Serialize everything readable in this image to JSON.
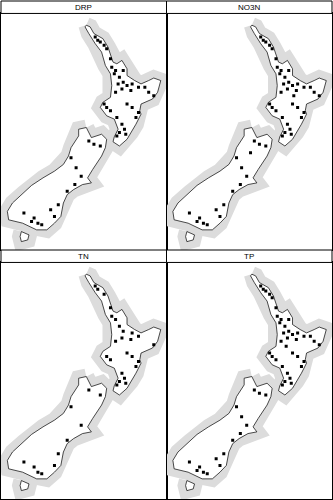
{
  "chart_data": [
    {
      "type": "scatter",
      "title": "DRP",
      "color": "#000000",
      "marker": "square",
      "tick_labels": false,
      "xlim": [
        166.0,
        179.0
      ],
      "ylim": [
        -47.8,
        -33.7
      ],
      "x": [
        173.4,
        173.8,
        174.1,
        173.6,
        174.3,
        174.6,
        174.7,
        175.0,
        174.9,
        175.6,
        175.3,
        175.6,
        175.2,
        175.5,
        175.9,
        175.0,
        176.3,
        176.8,
        177.3,
        176.2,
        178.0,
        177.6,
        176.8,
        176.6,
        176.3,
        174.3,
        174.1,
        174.6,
        175.5,
        175.7,
        175.8,
        175.3,
        175.1,
        175.9,
        175.1,
        172.9,
        173.3,
        173.8,
        171.5,
        171.9,
        172.3,
        171.8,
        171.2,
        170.5,
        169.9,
        170.2,
        168.6,
        168.9,
        168.4,
        169.2,
        167.8
      ],
      "y": [
        -35.1,
        -35.4,
        -35.6,
        -35.3,
        -35.8,
        -36.4,
        -36.9,
        -37.1,
        -37.3,
        -37.1,
        -37.5,
        -37.8,
        -37.9,
        -38.2,
        -38.0,
        -38.4,
        -37.9,
        -38.1,
        -38.1,
        -38.3,
        -38.6,
        -38.4,
        -39.6,
        -39.9,
        -39.3,
        -39.3,
        -39.1,
        -39.5,
        -40.3,
        -40.6,
        -40.9,
        -40.8,
        -39.9,
        -39.1,
        -41.0,
        -41.3,
        -41.5,
        -41.6,
        -42.3,
        -42.9,
        -43.4,
        -43.9,
        -44.3,
        -45.1,
        -45.4,
        -45.8,
        -45.9,
        -46.2,
        -46.1,
        -46.3,
        -45.6
      ]
    },
    {
      "type": "scatter",
      "title": "NO3N",
      "color": "#000000",
      "marker": "square",
      "tick_labels": false,
      "xlim": [
        166.0,
        179.0
      ],
      "ylim": [
        -47.8,
        -33.7
      ],
      "x": [
        173.4,
        173.8,
        174.1,
        173.6,
        174.3,
        174.6,
        174.7,
        175.0,
        174.9,
        175.6,
        175.3,
        175.6,
        175.2,
        175.5,
        175.9,
        175.0,
        176.3,
        176.8,
        177.3,
        176.2,
        178.0,
        177.6,
        176.8,
        176.6,
        176.3,
        174.3,
        174.1,
        174.6,
        175.5,
        175.7,
        175.8,
        175.3,
        175.1,
        175.9,
        175.1,
        176.0,
        172.9,
        173.3,
        173.8,
        172.6,
        171.5,
        171.9,
        172.3,
        171.8,
        171.2,
        170.5,
        169.9,
        170.2,
        168.6,
        168.9,
        168.4,
        169.2,
        167.8
      ],
      "y": [
        -35.1,
        -35.4,
        -35.6,
        -35.3,
        -35.8,
        -36.4,
        -36.9,
        -37.1,
        -37.3,
        -37.1,
        -37.5,
        -37.8,
        -37.9,
        -38.2,
        -38.0,
        -38.4,
        -37.9,
        -38.1,
        -38.1,
        -38.3,
        -38.6,
        -38.4,
        -39.6,
        -39.9,
        -39.3,
        -39.3,
        -39.1,
        -39.5,
        -40.3,
        -40.6,
        -40.9,
        -40.8,
        -39.9,
        -39.1,
        -41.0,
        -38.6,
        -41.3,
        -41.5,
        -41.6,
        -42.0,
        -42.3,
        -42.9,
        -43.4,
        -43.9,
        -44.3,
        -45.1,
        -45.4,
        -45.8,
        -45.9,
        -46.2,
        -46.1,
        -46.3,
        -45.6
      ]
    },
    {
      "type": "scatter",
      "title": "TN",
      "color": "#000000",
      "marker": "square",
      "tick_labels": false,
      "xlim": [
        166.0,
        179.0
      ],
      "ylim": [
        -47.8,
        -33.7
      ],
      "x": [
        173.4,
        174.1,
        173.6,
        174.6,
        174.7,
        175.0,
        175.3,
        175.6,
        175.5,
        175.0,
        176.3,
        176.8,
        176.2,
        178.0,
        176.8,
        176.6,
        176.3,
        174.3,
        174.6,
        175.5,
        175.7,
        175.8,
        175.3,
        175.9,
        175.1,
        172.9,
        173.8,
        171.5,
        172.3,
        171.2,
        170.5,
        170.2,
        168.6,
        168.9,
        169.2,
        167.8
      ],
      "y": [
        -35.1,
        -35.6,
        -35.3,
        -36.4,
        -36.9,
        -37.1,
        -37.5,
        -37.8,
        -38.2,
        -38.4,
        -37.9,
        -38.1,
        -38.3,
        -38.6,
        -39.6,
        -39.9,
        -39.3,
        -39.3,
        -39.5,
        -40.3,
        -40.6,
        -40.9,
        -40.8,
        -39.1,
        -41.0,
        -41.3,
        -41.6,
        -42.3,
        -43.4,
        -44.3,
        -45.1,
        -45.8,
        -45.9,
        -46.2,
        -46.3,
        -45.6
      ]
    },
    {
      "type": "scatter",
      "title": "TP",
      "color": "#000000",
      "marker": "square",
      "tick_labels": false,
      "xlim": [
        166.0,
        179.0
      ],
      "ylim": [
        -47.8,
        -33.7
      ],
      "x": [
        173.4,
        173.8,
        174.1,
        173.6,
        174.3,
        174.6,
        174.7,
        175.0,
        174.9,
        175.6,
        175.3,
        175.6,
        175.2,
        175.5,
        175.9,
        175.0,
        175.4,
        176.3,
        176.8,
        177.3,
        176.2,
        178.0,
        177.6,
        176.8,
        176.6,
        176.3,
        174.3,
        174.1,
        174.6,
        175.5,
        175.7,
        175.8,
        175.3,
        175.1,
        175.9,
        175.1,
        172.9,
        173.3,
        173.8,
        171.5,
        171.9,
        172.3,
        171.8,
        171.2,
        170.5,
        169.9,
        170.2,
        168.6,
        168.9,
        168.4,
        169.2,
        167.8
      ],
      "y": [
        -35.1,
        -35.4,
        -35.6,
        -35.3,
        -35.8,
        -36.4,
        -36.9,
        -37.1,
        -37.3,
        -37.1,
        -37.5,
        -37.8,
        -37.9,
        -38.2,
        -38.0,
        -38.4,
        -38.7,
        -37.9,
        -38.1,
        -38.1,
        -38.3,
        -38.6,
        -38.4,
        -39.6,
        -39.9,
        -39.3,
        -39.3,
        -39.1,
        -39.5,
        -40.3,
        -40.6,
        -40.9,
        -40.8,
        -39.9,
        -39.1,
        -41.0,
        -41.3,
        -41.5,
        -41.6,
        -42.3,
        -42.9,
        -43.4,
        -43.9,
        -44.3,
        -45.1,
        -45.4,
        -45.8,
        -45.9,
        -46.2,
        -46.1,
        -46.3,
        -45.6
      ]
    }
  ],
  "coastline": [
    {
      "lon": [
        172.7,
        173.0,
        173.3,
        174.0,
        174.4,
        174.6,
        174.8,
        175.1,
        175.5,
        175.9,
        175.9,
        176.5,
        177.0,
        177.6,
        178.0,
        178.55,
        178.3,
        177.9,
        177.0,
        176.9,
        177.0,
        176.6,
        176.2,
        175.9,
        175.3,
        174.8,
        174.9,
        175.2,
        174.9,
        174.3,
        173.8,
        174.0,
        174.6,
        174.7,
        174.6,
        174.2,
        173.9,
        173.4,
        172.9,
        172.6,
        172.7
      ],
      "lat": [
        -34.4,
        -34.5,
        -34.9,
        -35.2,
        -35.7,
        -36.1,
        -36.6,
        -36.7,
        -36.5,
        -37.0,
        -37.4,
        -37.7,
        -37.9,
        -37.7,
        -37.55,
        -37.7,
        -38.4,
        -38.8,
        -39.1,
        -39.5,
        -39.7,
        -40.3,
        -40.8,
        -41.2,
        -41.6,
        -41.35,
        -41.05,
        -40.6,
        -40.0,
        -39.8,
        -39.3,
        -39.0,
        -38.7,
        -38.0,
        -37.3,
        -36.8,
        -36.0,
        -35.5,
        -34.9,
        -34.5,
        -34.4
      ]
    },
    {
      "lon": [
        172.7,
        173.1,
        173.9,
        174.3,
        174.2,
        173.9,
        173.2,
        172.8,
        173.1,
        172.4,
        171.7,
        171.2,
        170.9,
        170.7,
        170.2,
        169.6,
        168.8,
        168.3,
        167.7,
        166.6,
        166.5,
        166.9,
        167.8,
        168.4,
        169.3,
        170.2,
        170.9,
        171.3,
        171.5,
        172.1,
        172.1,
        172.7
      ],
      "lat": [
        -40.5,
        -41.1,
        -40.9,
        -41.2,
        -41.7,
        -42.2,
        -43.0,
        -43.5,
        -43.8,
        -43.9,
        -44.2,
        -44.5,
        -45.0,
        -45.8,
        -46.2,
        -46.6,
        -46.6,
        -46.4,
        -46.2,
        -46.0,
        -45.5,
        -45.0,
        -44.4,
        -43.95,
        -43.5,
        -43.1,
        -42.7,
        -42.2,
        -41.7,
        -41.0,
        -40.6,
        -40.5
      ]
    },
    {
      "lon": [
        167.6,
        168.2,
        168.1,
        167.6,
        167.5,
        167.6
      ],
      "lat": [
        -46.7,
        -46.9,
        -47.2,
        -47.3,
        -47.0,
        -46.7
      ]
    }
  ]
}
